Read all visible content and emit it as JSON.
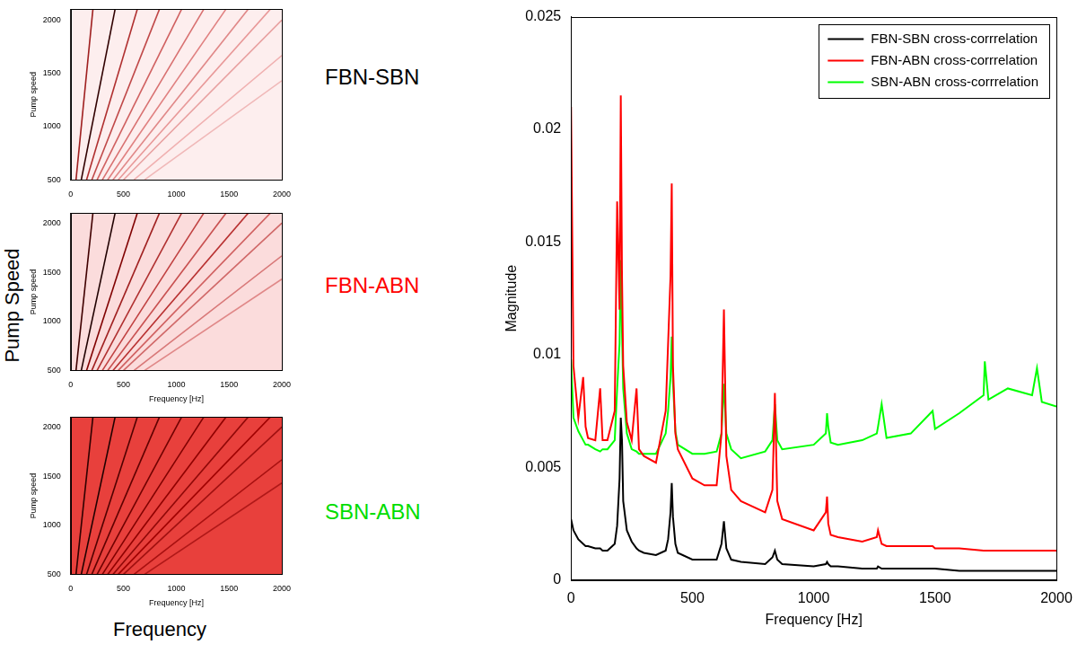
{
  "figure": {
    "xlabel": "Frequency",
    "ylabel": "Pump Speed"
  },
  "chart_data": [
    {
      "type": "line",
      "title": "FBN-SBN",
      "color": "#000000",
      "ylabel": "Pump speed",
      "xlim": [
        0,
        2000
      ],
      "xticks": [
        0,
        500,
        1000,
        1500,
        2000
      ],
      "ylim": [
        500,
        2100
      ],
      "yticks": [
        500,
        1000,
        1500,
        2000
      ],
      "grid": false,
      "series": [
        {
          "color": "#a02020",
          "x": [
            50,
            210
          ],
          "values": [
            500,
            2100
          ]
        },
        {
          "color": "#300000",
          "x": [
            100,
            420
          ],
          "values": [
            500,
            2100
          ]
        },
        {
          "color": "#b03030",
          "x": [
            150,
            630
          ],
          "values": [
            500,
            2100
          ]
        },
        {
          "color": "#c04848",
          "x": [
            200,
            840
          ],
          "values": [
            500,
            2100
          ]
        },
        {
          "color": "#d06060",
          "x": [
            250,
            1050
          ],
          "values": [
            500,
            2100
          ]
        },
        {
          "color": "#d87070",
          "x": [
            300,
            1260
          ],
          "values": [
            500,
            2100
          ]
        },
        {
          "color": "#e08080",
          "x": [
            350,
            1470
          ],
          "values": [
            500,
            2100
          ]
        },
        {
          "color": "#e08888",
          "x": [
            400,
            1680
          ],
          "values": [
            500,
            2100
          ]
        },
        {
          "color": "#e89898",
          "x": [
            450,
            1890
          ],
          "values": [
            500,
            2100
          ]
        },
        {
          "color": "#e8a0a0",
          "x": [
            500,
            2000
          ],
          "values": [
            500,
            2000
          ]
        },
        {
          "color": "#f0b0b0",
          "x": [
            600,
            2000
          ],
          "values": [
            500,
            1667
          ]
        },
        {
          "color": "#f0b8b8",
          "x": [
            700,
            2000
          ],
          "values": [
            500,
            1430
          ]
        }
      ]
    },
    {
      "type": "line",
      "title": "FBN-ABN",
      "color": "#ff0000",
      "xlabel": "Frequency [Hz]",
      "ylabel": "Pump speed",
      "xlim": [
        0,
        2000
      ],
      "xticks": [
        0,
        500,
        1000,
        1500,
        2000
      ],
      "ylim": [
        500,
        2100
      ],
      "yticks": [
        500,
        1000,
        1500,
        2000
      ],
      "grid": false,
      "series": [
        {
          "color": "#400000",
          "x": [
            50,
            210
          ],
          "values": [
            500,
            2100
          ]
        },
        {
          "color": "#200000",
          "x": [
            100,
            420
          ],
          "values": [
            500,
            2100
          ]
        },
        {
          "color": "#800000",
          "x": [
            150,
            630
          ],
          "values": [
            500,
            2100
          ]
        },
        {
          "color": "#a02020",
          "x": [
            200,
            840
          ],
          "values": [
            500,
            2100
          ]
        },
        {
          "color": "#b03030",
          "x": [
            250,
            1050
          ],
          "values": [
            500,
            2100
          ]
        },
        {
          "color": "#c04040",
          "x": [
            300,
            1260
          ],
          "values": [
            500,
            2100
          ]
        },
        {
          "color": "#c85050",
          "x": [
            350,
            1470
          ],
          "values": [
            500,
            2100
          ]
        },
        {
          "color": "#b83030",
          "x": [
            400,
            1680
          ],
          "values": [
            500,
            2100
          ]
        },
        {
          "color": "#d06060",
          "x": [
            450,
            1890
          ],
          "values": [
            500,
            2100
          ]
        },
        {
          "color": "#d06868",
          "x": [
            500,
            2000
          ],
          "values": [
            500,
            2000
          ]
        },
        {
          "color": "#d87878",
          "x": [
            600,
            2000
          ],
          "values": [
            500,
            1667
          ]
        },
        {
          "color": "#e08888",
          "x": [
            700,
            2000
          ],
          "values": [
            500,
            1430
          ]
        }
      ]
    },
    {
      "type": "line",
      "title": "SBN-ABN",
      "color": "#00dd00",
      "xlabel": "Frequency [Hz]",
      "ylabel": "Pump speed",
      "xlim": [
        0,
        2000
      ],
      "xticks": [
        0,
        500,
        1000,
        1500,
        2000
      ],
      "ylim": [
        500,
        2100
      ],
      "yticks": [
        500,
        1000,
        1500,
        2000
      ],
      "grid": false,
      "series": [
        {
          "color": "#300000",
          "x": [
            50,
            210
          ],
          "values": [
            500,
            2100
          ]
        },
        {
          "color": "#200000",
          "x": [
            100,
            420
          ],
          "values": [
            500,
            2100
          ]
        },
        {
          "color": "#500000",
          "x": [
            150,
            630
          ],
          "values": [
            500,
            2100
          ]
        },
        {
          "color": "#600000",
          "x": [
            200,
            840
          ],
          "values": [
            500,
            2100
          ]
        },
        {
          "color": "#700000",
          "x": [
            250,
            1050
          ],
          "values": [
            500,
            2100
          ]
        },
        {
          "color": "#800000",
          "x": [
            300,
            1260
          ],
          "values": [
            500,
            2100
          ]
        },
        {
          "color": "#900000",
          "x": [
            350,
            1470
          ],
          "values": [
            500,
            2100
          ]
        },
        {
          "color": "#900808",
          "x": [
            400,
            1680
          ],
          "values": [
            500,
            2100
          ]
        },
        {
          "color": "#a00000",
          "x": [
            450,
            1890
          ],
          "values": [
            500,
            2100
          ]
        },
        {
          "color": "#a01010",
          "x": [
            500,
            2000
          ],
          "values": [
            500,
            2000
          ]
        },
        {
          "color": "#a81010",
          "x": [
            600,
            2000
          ],
          "values": [
            500,
            1667
          ]
        },
        {
          "color": "#b01818",
          "x": [
            700,
            2000
          ],
          "values": [
            500,
            1430
          ]
        }
      ]
    },
    {
      "type": "line",
      "xlabel": "Frequency [Hz]",
      "ylabel": "Magnitude",
      "xlim": [
        0,
        2000
      ],
      "xticks": [
        0,
        500,
        1000,
        1500,
        2000
      ],
      "ylim": [
        0,
        0.025
      ],
      "yticks": [
        0,
        0.005,
        0.01,
        0.015,
        0.02,
        0.025
      ],
      "grid": false,
      "legend": "upper right",
      "x": [
        0,
        10,
        30,
        50,
        60,
        70,
        100,
        120,
        130,
        150,
        180,
        190,
        200,
        205,
        210,
        215,
        230,
        250,
        270,
        280,
        300,
        350,
        390,
        400,
        410,
        415,
        420,
        430,
        440,
        500,
        550,
        600,
        620,
        630,
        640,
        660,
        700,
        800,
        830,
        840,
        850,
        870,
        1000,
        1050,
        1055,
        1060,
        1070,
        1100,
        1200,
        1260,
        1265,
        1280,
        1300,
        1400,
        1490,
        1500,
        1600,
        1700,
        1705,
        1720,
        1800,
        1900,
        1920,
        1940,
        2000
      ],
      "series": [
        {
          "name": "FBN-SBN cross-corrrelation",
          "color": "#000000",
          "values": [
            0.0027,
            0.0022,
            0.0018,
            0.0016,
            0.0015,
            0.0015,
            0.0014,
            0.0014,
            0.0013,
            0.0013,
            0.0016,
            0.0024,
            0.0045,
            0.0072,
            0.0062,
            0.0035,
            0.0022,
            0.0017,
            0.0014,
            0.0013,
            0.0012,
            0.0011,
            0.0013,
            0.0018,
            0.003,
            0.0043,
            0.0028,
            0.0016,
            0.0012,
            0.0009,
            0.0009,
            0.0009,
            0.0016,
            0.0026,
            0.0014,
            0.0009,
            0.0008,
            0.0007,
            0.001,
            0.0013,
            0.0009,
            0.0007,
            0.0006,
            0.0007,
            0.0008,
            0.0007,
            0.0006,
            0.0006,
            0.0005,
            0.0005,
            0.0006,
            0.0005,
            0.0005,
            0.0005,
            0.0005,
            0.0005,
            0.0004,
            0.0004,
            0.0004,
            0.0004,
            0.0004,
            0.0004,
            0.0004,
            0.0004,
            0.0004
          ]
        },
        {
          "name": "FBN-ABN cross-corrrelation",
          "color": "#ff0000",
          "values": [
            0.021,
            0.0095,
            0.0072,
            0.009,
            0.0068,
            0.0063,
            0.0062,
            0.0085,
            0.0062,
            0.0062,
            0.0075,
            0.0168,
            0.012,
            0.0215,
            0.0135,
            0.0095,
            0.007,
            0.0062,
            0.0085,
            0.0058,
            0.0055,
            0.0052,
            0.0075,
            0.0105,
            0.0135,
            0.0176,
            0.0095,
            0.0065,
            0.0058,
            0.0045,
            0.0042,
            0.0042,
            0.0065,
            0.012,
            0.0055,
            0.004,
            0.0035,
            0.003,
            0.004,
            0.0083,
            0.0035,
            0.0027,
            0.0022,
            0.003,
            0.0037,
            0.0025,
            0.002,
            0.0019,
            0.0017,
            0.0019,
            0.0022,
            0.0016,
            0.0015,
            0.0015,
            0.0015,
            0.0014,
            0.0014,
            0.0013,
            0.0013,
            0.0013,
            0.0013,
            0.0013,
            0.0013,
            0.0013,
            0.0013
          ]
        },
        {
          "name": "SBN-ABN cross-corrrelation",
          "color": "#00ff00",
          "values": [
            0.0098,
            0.0072,
            0.0066,
            0.0062,
            0.006,
            0.006,
            0.0058,
            0.0057,
            0.0058,
            0.0058,
            0.0062,
            0.0085,
            0.0105,
            0.0142,
            0.011,
            0.0085,
            0.0065,
            0.0058,
            0.0057,
            0.0056,
            0.0056,
            0.0056,
            0.0065,
            0.0075,
            0.009,
            0.0108,
            0.0088,
            0.0066,
            0.006,
            0.0056,
            0.0056,
            0.0057,
            0.0065,
            0.0087,
            0.0065,
            0.0058,
            0.0054,
            0.0057,
            0.0062,
            0.0078,
            0.0062,
            0.0058,
            0.006,
            0.0065,
            0.0074,
            0.0068,
            0.0061,
            0.006,
            0.0062,
            0.0065,
            0.0068,
            0.0078,
            0.0063,
            0.0065,
            0.0075,
            0.0067,
            0.0074,
            0.0082,
            0.0097,
            0.008,
            0.0085,
            0.0082,
            0.0094,
            0.0079,
            0.0077
          ]
        }
      ]
    }
  ]
}
